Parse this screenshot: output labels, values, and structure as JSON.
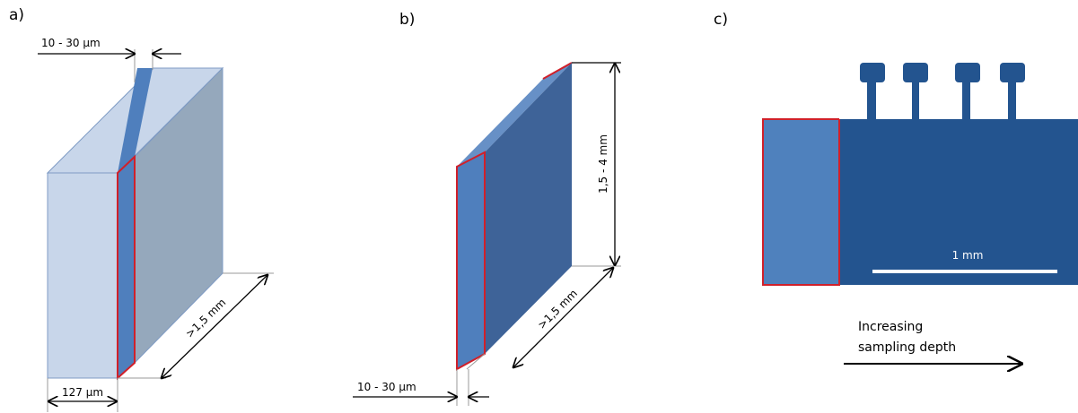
{
  "panels": [
    {
      "label": "a)",
      "dimensions": [
        "10 - 30 µm",
        ">1,5 mm",
        "127 µm"
      ]
    },
    {
      "label": "b)",
      "dimensions": [
        "1,5 - 4 mm",
        ">1,5 mm",
        "10 - 30 µm"
      ]
    },
    {
      "label": "c)",
      "scale_bar": "1 mm",
      "arrow_caption": [
        "Increasing",
        "sampling depth"
      ]
    }
  ]
}
